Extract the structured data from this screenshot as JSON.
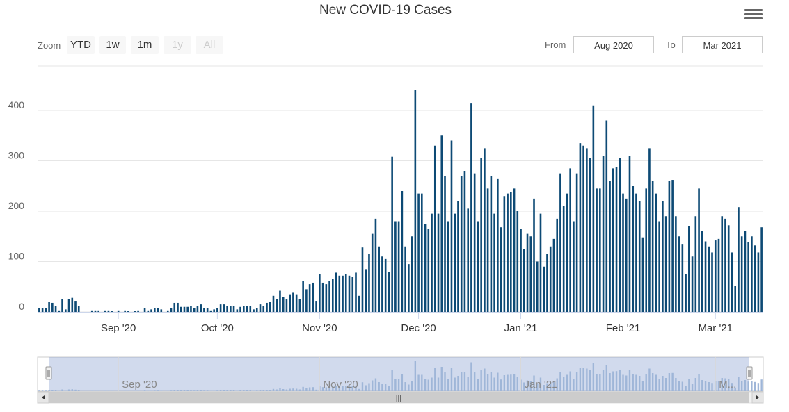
{
  "chart_data": {
    "type": "bar",
    "title": "New COVID-19 Cases",
    "xlabel": "",
    "ylabel": "",
    "ylim": [
      0,
      440
    ],
    "grid": true,
    "y_ticks": [
      0,
      100,
      200,
      300,
      400
    ],
    "x_ticks": [
      "Sep '20",
      "Oct '20",
      "Nov '20",
      "Dec '20",
      "Jan '21",
      "Feb '21",
      "Mar '21"
    ],
    "color": "#0d4a75",
    "start_date": "2020-08-08",
    "values": [
      8,
      8,
      8,
      20,
      18,
      12,
      3,
      25,
      5,
      25,
      28,
      22,
      12,
      0,
      0,
      0,
      3,
      3,
      3,
      0,
      3,
      3,
      2,
      0,
      3,
      0,
      3,
      2,
      0,
      2,
      3,
      0,
      8,
      3,
      5,
      7,
      8,
      5,
      0,
      3,
      8,
      18,
      18,
      10,
      10,
      10,
      12,
      8,
      12,
      15,
      8,
      8,
      3,
      5,
      8,
      15,
      15,
      12,
      12,
      12,
      5,
      10,
      12,
      12,
      12,
      5,
      8,
      15,
      12,
      18,
      20,
      32,
      25,
      42,
      30,
      25,
      35,
      38,
      35,
      25,
      62,
      45,
      55,
      58,
      22,
      75,
      58,
      55,
      62,
      65,
      78,
      72,
      72,
      75,
      72,
      70,
      78,
      32,
      128,
      85,
      115,
      155,
      185,
      130,
      110,
      105,
      80,
      308,
      180,
      180,
      240,
      130,
      95,
      150,
      440,
      235,
      235,
      175,
      165,
      195,
      330,
      195,
      350,
      270,
      180,
      340,
      195,
      220,
      270,
      280,
      205,
      415,
      275,
      180,
      305,
      325,
      245,
      270,
      195,
      265,
      168,
      230,
      235,
      238,
      245,
      200,
      165,
      125,
      155,
      150,
      225,
      100,
      195,
      90,
      115,
      130,
      145,
      185,
      275,
      210,
      235,
      285,
      180,
      275,
      335,
      330,
      325,
      305,
      410,
      245,
      245,
      310,
      380,
      260,
      285,
      288,
      305,
      235,
      225,
      310,
      250,
      235,
      220,
      148,
      245,
      325,
      260,
      235,
      180,
      220,
      190,
      260,
      262,
      190,
      150,
      135,
      75,
      170,
      110,
      190,
      245,
      160,
      140,
      130,
      118,
      142,
      145,
      190,
      185,
      172,
      118,
      52,
      208,
      150,
      160,
      138,
      150,
      132,
      118,
      168
    ]
  },
  "ui": {
    "zoom_label": "Zoom",
    "zoom_buttons": [
      "YTD",
      "1w",
      "1m",
      "1y",
      "All"
    ],
    "from_label": "From",
    "to_label": "To",
    "from_value": "Aug 2020",
    "to_value": "Mar 2021",
    "navigator_labels": [
      "Sep '20",
      "Nov '20",
      "Jan '21",
      "M..."
    ],
    "scrollbar_grip": "|||"
  }
}
